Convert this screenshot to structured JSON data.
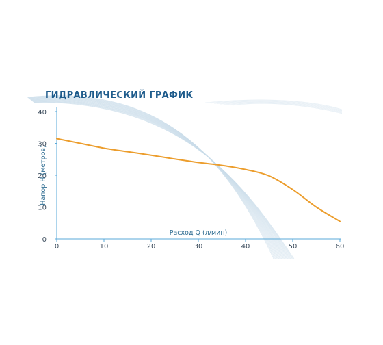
{
  "chart_data": {
    "type": "line",
    "title": "ГИДРАВЛИЧЕСКИЙ ГРАФИК",
    "xlabel": "Расход Q (л/мин)",
    "ylabel": "Напор Н (метров)",
    "xlim": [
      0,
      60
    ],
    "ylim": [
      0,
      40
    ],
    "xticks": [
      0,
      10,
      20,
      30,
      40,
      50,
      60
    ],
    "yticks": [
      0,
      10,
      20,
      30,
      40
    ],
    "grid": false,
    "colors": {
      "line": "#ec9d2c",
      "axis": "#5aa9d8",
      "title": "#1f5c8c",
      "decor": "#c9dcea"
    },
    "series": [
      {
        "x": [
          0,
          5,
          10,
          15,
          20,
          25,
          30,
          35,
          40,
          45,
          50,
          55,
          60
        ],
        "y": [
          31.5,
          30,
          28.5,
          27.4,
          26.3,
          25.1,
          24,
          23.1,
          21.8,
          19.8,
          15.5,
          10,
          5.5
        ]
      }
    ]
  }
}
